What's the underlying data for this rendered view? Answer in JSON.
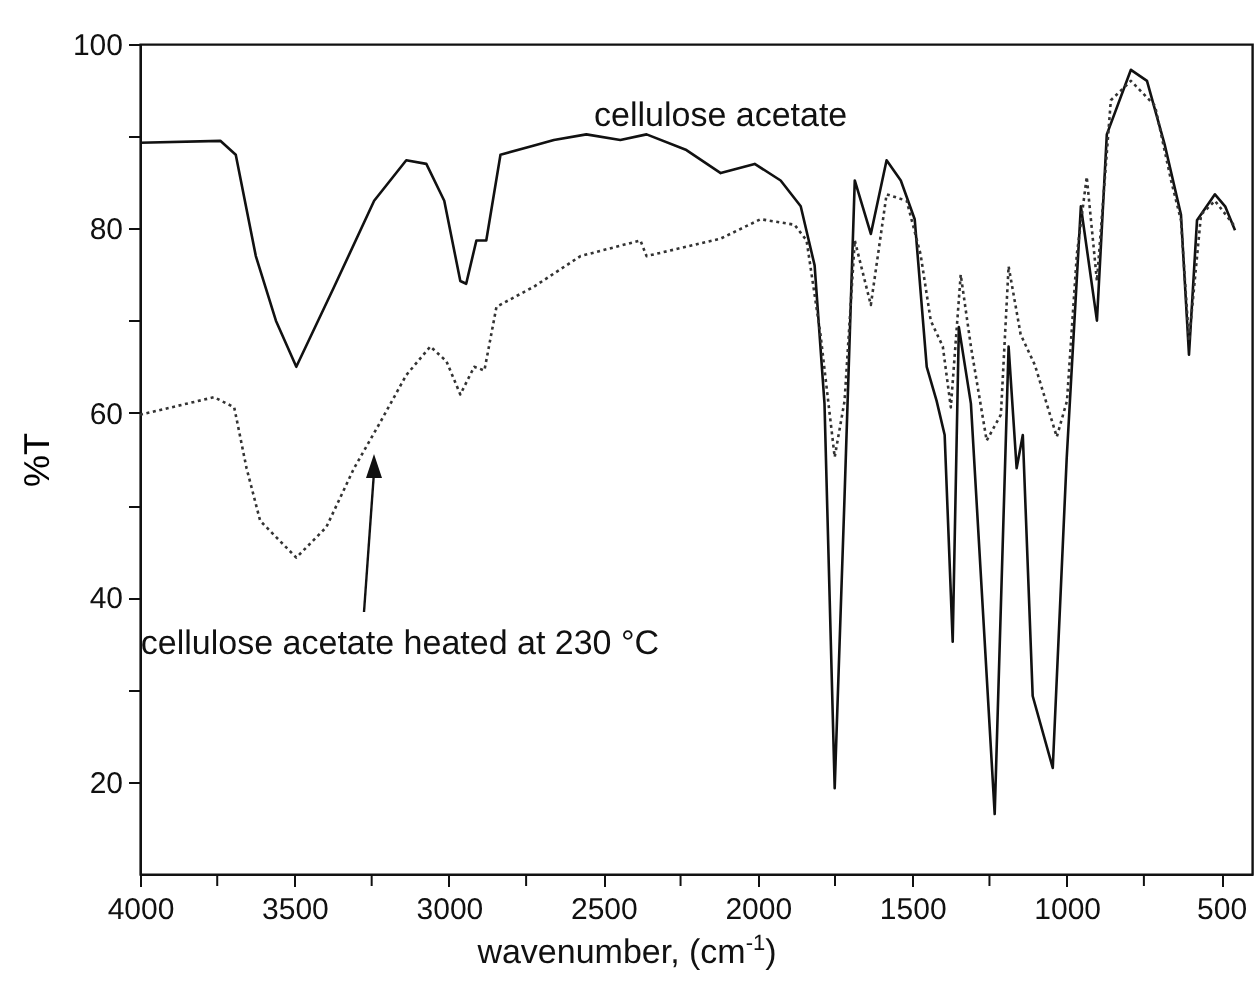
{
  "chart_data": {
    "type": "line",
    "xlabel": "wavenumber, (cm$^{-1}$)",
    "ylabel": "%T",
    "xlim": [
      4000,
      400
    ],
    "ylim": [
      10,
      100
    ],
    "xticks": [
      4000,
      {
        "value": 3750,
        "label": null
      },
      3500,
      {
        "value": 3250,
        "label": null
      },
      3000,
      {
        "value": 2750,
        "label": null
      },
      2500,
      {
        "value": 2250,
        "label": null
      },
      2000,
      {
        "value": 1750,
        "label": null
      },
      1500,
      {
        "value": 1250,
        "label": null
      },
      1000,
      {
        "value": 750,
        "label": null
      },
      500
    ],
    "yticks": [
      20,
      {
        "value": 30,
        "label": null
      },
      40,
      {
        "value": 50,
        "label": null
      },
      60,
      {
        "value": 70,
        "label": null
      },
      80,
      {
        "value": 90,
        "label": null
      },
      100
    ],
    "series": [
      {
        "name": "cellulose acetate",
        "color": "#111111",
        "line_style": "solid",
        "x": [
          4000,
          3740,
          3690,
          3625,
          3560,
          3494,
          3371,
          3242,
          3138,
          3073,
          3015,
          2963,
          2944,
          2911,
          2879,
          2833,
          2724,
          2660,
          2555,
          2445,
          2360,
          2231,
          2120,
          2010,
          1926,
          1861,
          1816,
          1784,
          1751,
          1720,
          1686,
          1634,
          1583,
          1537,
          1492,
          1453,
          1421,
          1395,
          1369,
          1349,
          1310,
          1233,
          1188,
          1162,
          1142,
          1110,
          1045,
          1000,
          954,
          902,
          870,
          792,
          740,
          682,
          630,
          604,
          578,
          520,
          487,
          455
        ],
        "values": [
          89.3,
          89.5,
          88,
          77,
          70,
          65,
          73.7,
          83,
          87.4,
          87,
          83,
          74.3,
          74,
          78.7,
          78.7,
          88,
          89,
          89.6,
          90.2,
          89.6,
          90.2,
          88.5,
          86,
          87,
          85.2,
          82.4,
          76,
          61,
          19.3,
          50,
          85.2,
          79.4,
          87.4,
          85.2,
          81,
          65,
          61.3,
          57.6,
          35.2,
          69.3,
          61,
          16.5,
          67.2,
          54,
          57.6,
          29.3,
          21.5,
          55,
          82.4,
          70,
          90.2,
          97.2,
          96,
          89,
          81.5,
          66.3,
          80.9,
          83.7,
          82.4,
          79.8
        ]
      },
      {
        "name": "cellulose acetate heated at 230 °C",
        "color": "#333333",
        "line_style": "dotted",
        "x": [
          4000,
          3760,
          3695,
          3655,
          3611,
          3494,
          3397,
          3307,
          3222,
          3138,
          3060,
          3008,
          2963,
          2918,
          2885,
          2846,
          2724,
          2574,
          2380,
          2360,
          2120,
          1991,
          1881,
          1842,
          1797,
          1751,
          1719,
          1686,
          1634,
          1583,
          1518,
          1473,
          1440,
          1401,
          1375,
          1343,
          1310,
          1259,
          1213,
          1188,
          1149,
          1103,
          1032,
          999,
          967,
          935,
          902,
          857,
          792,
          714,
          662,
          630,
          604,
          565,
          520,
          455
        ],
        "values": [
          59.8,
          61.7,
          60.6,
          54,
          48.3,
          44.3,
          47.6,
          54,
          59,
          64.1,
          67.2,
          65.6,
          62,
          65,
          64.6,
          71.5,
          73.7,
          77,
          78.7,
          77,
          78.9,
          81,
          80.4,
          78.7,
          68.5,
          55.2,
          61.3,
          78.7,
          71.7,
          83.7,
          83,
          77.2,
          70,
          67.2,
          60.6,
          75,
          67.2,
          57,
          59.8,
          75.9,
          68.5,
          65.2,
          57.4,
          61.3,
          77.2,
          85.6,
          74.3,
          93.9,
          96,
          93.3,
          85.2,
          80.9,
          67.8,
          81.5,
          83,
          80.2
        ]
      }
    ]
  }
}
